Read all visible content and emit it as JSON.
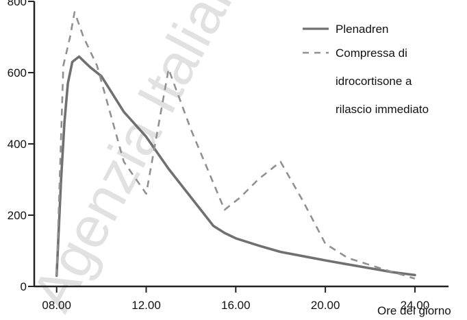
{
  "chart_data": {
    "type": "line",
    "xlabel": "Ore del giorno",
    "ylabel": "",
    "xlim": [
      7,
      25.5
    ],
    "ylim": [
      0,
      800
    ],
    "x_ticks": [
      8,
      12,
      16,
      20,
      24
    ],
    "x_tick_labels": [
      "08.00",
      "12.00",
      "16.00",
      "20.00",
      "24.00"
    ],
    "y_ticks": [
      0,
      200,
      400,
      600,
      800
    ],
    "y_tick_labels": [
      "0",
      "200",
      "400",
      "600",
      "800"
    ],
    "grid": false,
    "legend_position": "top-right",
    "series": [
      {
        "name": "Plenadren",
        "style": "solid",
        "color": "#707070",
        "points": [
          [
            8.0,
            30
          ],
          [
            8.2,
            300
          ],
          [
            8.35,
            460
          ],
          [
            8.5,
            570
          ],
          [
            8.7,
            630
          ],
          [
            9.0,
            645
          ],
          [
            9.5,
            615
          ],
          [
            10.0,
            590
          ],
          [
            11.0,
            490
          ],
          [
            12.0,
            420
          ],
          [
            13.0,
            330
          ],
          [
            14.0,
            250
          ],
          [
            15.0,
            170
          ],
          [
            15.5,
            150
          ],
          [
            16.0,
            135
          ],
          [
            17.0,
            115
          ],
          [
            18.0,
            97
          ],
          [
            19.0,
            85
          ],
          [
            20.0,
            73
          ],
          [
            21.0,
            62
          ],
          [
            22.0,
            51
          ],
          [
            23.0,
            40
          ],
          [
            24.0,
            32
          ]
        ]
      },
      {
        "name": "Compressa di idrocortisone a rilascio immediato",
        "name_lines": [
          "Compressa di",
          "idrocortisone a",
          "rilascio immediato"
        ],
        "style": "dashed",
        "color": "#909090",
        "points": [
          [
            8.0,
            30
          ],
          [
            8.3,
            620
          ],
          [
            8.6,
            700
          ],
          [
            8.8,
            770
          ],
          [
            9.2,
            700
          ],
          [
            9.8,
            620
          ],
          [
            11.0,
            350
          ],
          [
            12.0,
            260
          ],
          [
            13.0,
            610
          ],
          [
            14.0,
            440
          ],
          [
            15.5,
            215
          ],
          [
            16.2,
            250
          ],
          [
            17.0,
            300
          ],
          [
            18.0,
            350
          ],
          [
            19.0,
            240
          ],
          [
            20.0,
            120
          ],
          [
            21.0,
            80
          ],
          [
            22.5,
            50
          ],
          [
            24.0,
            22
          ]
        ]
      }
    ]
  },
  "watermark": {
    "text": "Agenzia Italiana del Farmaco"
  }
}
